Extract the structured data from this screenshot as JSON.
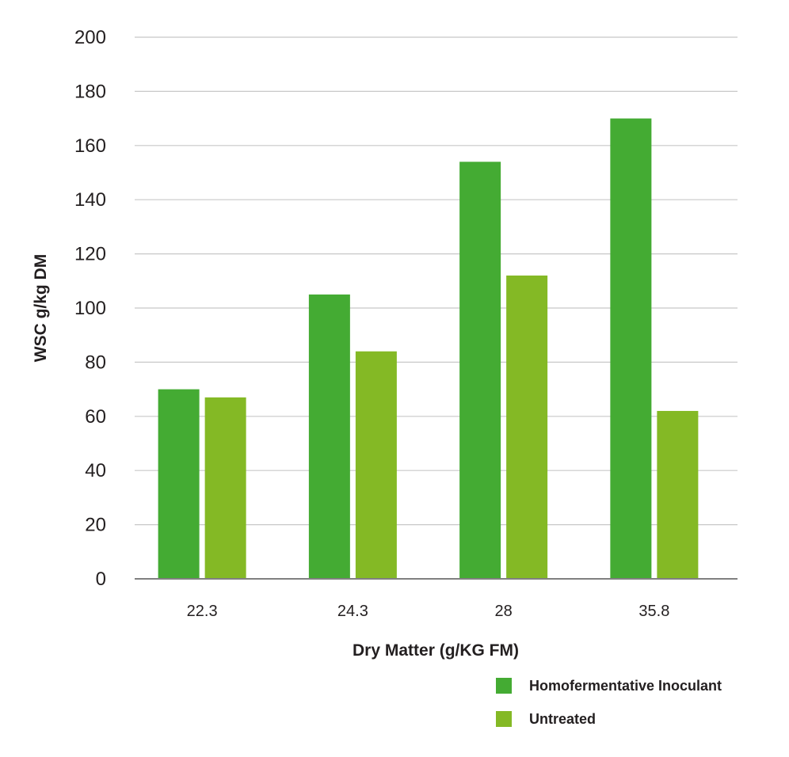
{
  "chart_data": {
    "type": "bar",
    "title": "",
    "xlabel": "Dry Matter (g/KG FM)",
    "ylabel": "WSC g/kg DM",
    "categories": [
      "22.3",
      "24.3",
      "28",
      "35.8"
    ],
    "ylim": [
      0,
      200
    ],
    "yticks": [
      0,
      20,
      40,
      60,
      80,
      100,
      120,
      140,
      160,
      180,
      200
    ],
    "grid": true,
    "legend_position": "bottom-right",
    "series": [
      {
        "name": "Homofermentative Inoculant",
        "color": "#44ab33",
        "values": [
          70,
          105,
          154,
          170
        ]
      },
      {
        "name": "Untreated",
        "color": "#84b925",
        "values": [
          67,
          84,
          112,
          62
        ]
      }
    ]
  }
}
